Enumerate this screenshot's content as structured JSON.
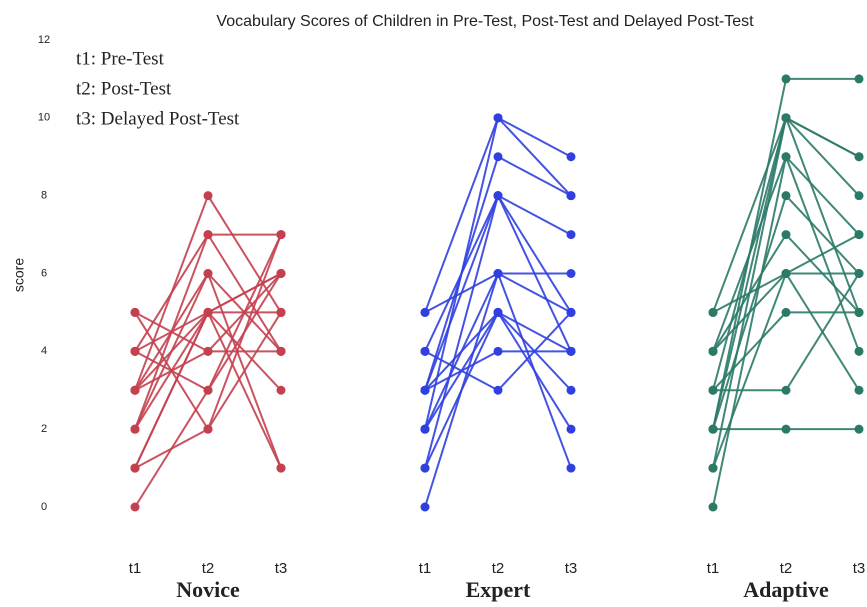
{
  "chart_data": [
    {
      "type": "line",
      "title": "Vocabulary Scores of Children in Pre-Test, Post-Test and Delayed Post-Test",
      "ylabel": "score",
      "annotations": [
        "t1: Pre-Test",
        "t2: Post-Test",
        "t3: Delayed Post-Test"
      ],
      "xlabel": "Novice",
      "color": "#c4404f",
      "categories": [
        "t1",
        "t2",
        "t3"
      ],
      "ylim": [
        0,
        12
      ],
      "yticks": [
        0,
        2,
        4,
        6,
        8,
        10,
        12
      ],
      "series": [
        {
          "values": [
            0,
            3,
            7
          ]
        },
        {
          "values": [
            1,
            5,
            6
          ]
        },
        {
          "values": [
            1,
            2,
            7
          ]
        },
        {
          "values": [
            2,
            7,
            4
          ]
        },
        {
          "values": [
            2,
            5,
            1
          ]
        },
        {
          "values": [
            3,
            8,
            5
          ]
        },
        {
          "values": [
            3,
            6,
            1
          ]
        },
        {
          "values": [
            3,
            4,
            4
          ]
        },
        {
          "values": [
            4,
            7,
            7
          ]
        },
        {
          "values": [
            4,
            3,
            6
          ]
        },
        {
          "values": [
            5,
            2,
            5
          ]
        },
        {
          "values": [
            5,
            4,
            6
          ]
        },
        {
          "values": [
            1,
            5,
            3
          ]
        },
        {
          "values": [
            2,
            6,
            4
          ]
        },
        {
          "values": [
            3,
            5,
            6
          ]
        },
        {
          "values": [
            4,
            5,
            5
          ]
        }
      ]
    },
    {
      "type": "line",
      "xlabel": "Expert",
      "color": "#3040e0",
      "categories": [
        "t1",
        "t2",
        "t3"
      ],
      "ylim": [
        0,
        12
      ],
      "series": [
        {
          "values": [
            0,
            6,
            5
          ]
        },
        {
          "values": [
            1,
            8,
            4
          ]
        },
        {
          "values": [
            1,
            5,
            3
          ]
        },
        {
          "values": [
            2,
            10,
            9
          ]
        },
        {
          "values": [
            2,
            6,
            1
          ]
        },
        {
          "values": [
            3,
            9,
            8
          ]
        },
        {
          "values": [
            3,
            5,
            2
          ]
        },
        {
          "values": [
            3,
            4,
            4
          ]
        },
        {
          "values": [
            4,
            8,
            7
          ]
        },
        {
          "values": [
            4,
            3,
            5
          ]
        },
        {
          "values": [
            5,
            6,
            6
          ]
        },
        {
          "values": [
            5,
            10,
            8
          ]
        },
        {
          "values": [
            2,
            5,
            4
          ]
        },
        {
          "values": [
            3,
            8,
            5
          ]
        }
      ]
    },
    {
      "type": "line",
      "xlabel": "Adaptive",
      "color": "#2b7a68",
      "categories": [
        "t1",
        "t2",
        "t3"
      ],
      "ylim": [
        0,
        12
      ],
      "series": [
        {
          "values": [
            0,
            9,
            4
          ]
        },
        {
          "values": [
            1,
            10,
            5
          ]
        },
        {
          "values": [
            1,
            6,
            3
          ]
        },
        {
          "values": [
            2,
            2,
            2
          ]
        },
        {
          "values": [
            2,
            11,
            11
          ]
        },
        {
          "values": [
            2,
            8,
            6
          ]
        },
        {
          "values": [
            3,
            3,
            6
          ]
        },
        {
          "values": [
            3,
            10,
            9
          ]
        },
        {
          "values": [
            4,
            9,
            7
          ]
        },
        {
          "values": [
            4,
            7,
            5
          ]
        },
        {
          "values": [
            5,
            10,
            8
          ]
        },
        {
          "values": [
            5,
            6,
            7
          ]
        },
        {
          "values": [
            3,
            5,
            5
          ]
        },
        {
          "values": [
            4,
            6,
            6
          ]
        },
        {
          "values": [
            2,
            10,
            9
          ]
        }
      ]
    }
  ]
}
